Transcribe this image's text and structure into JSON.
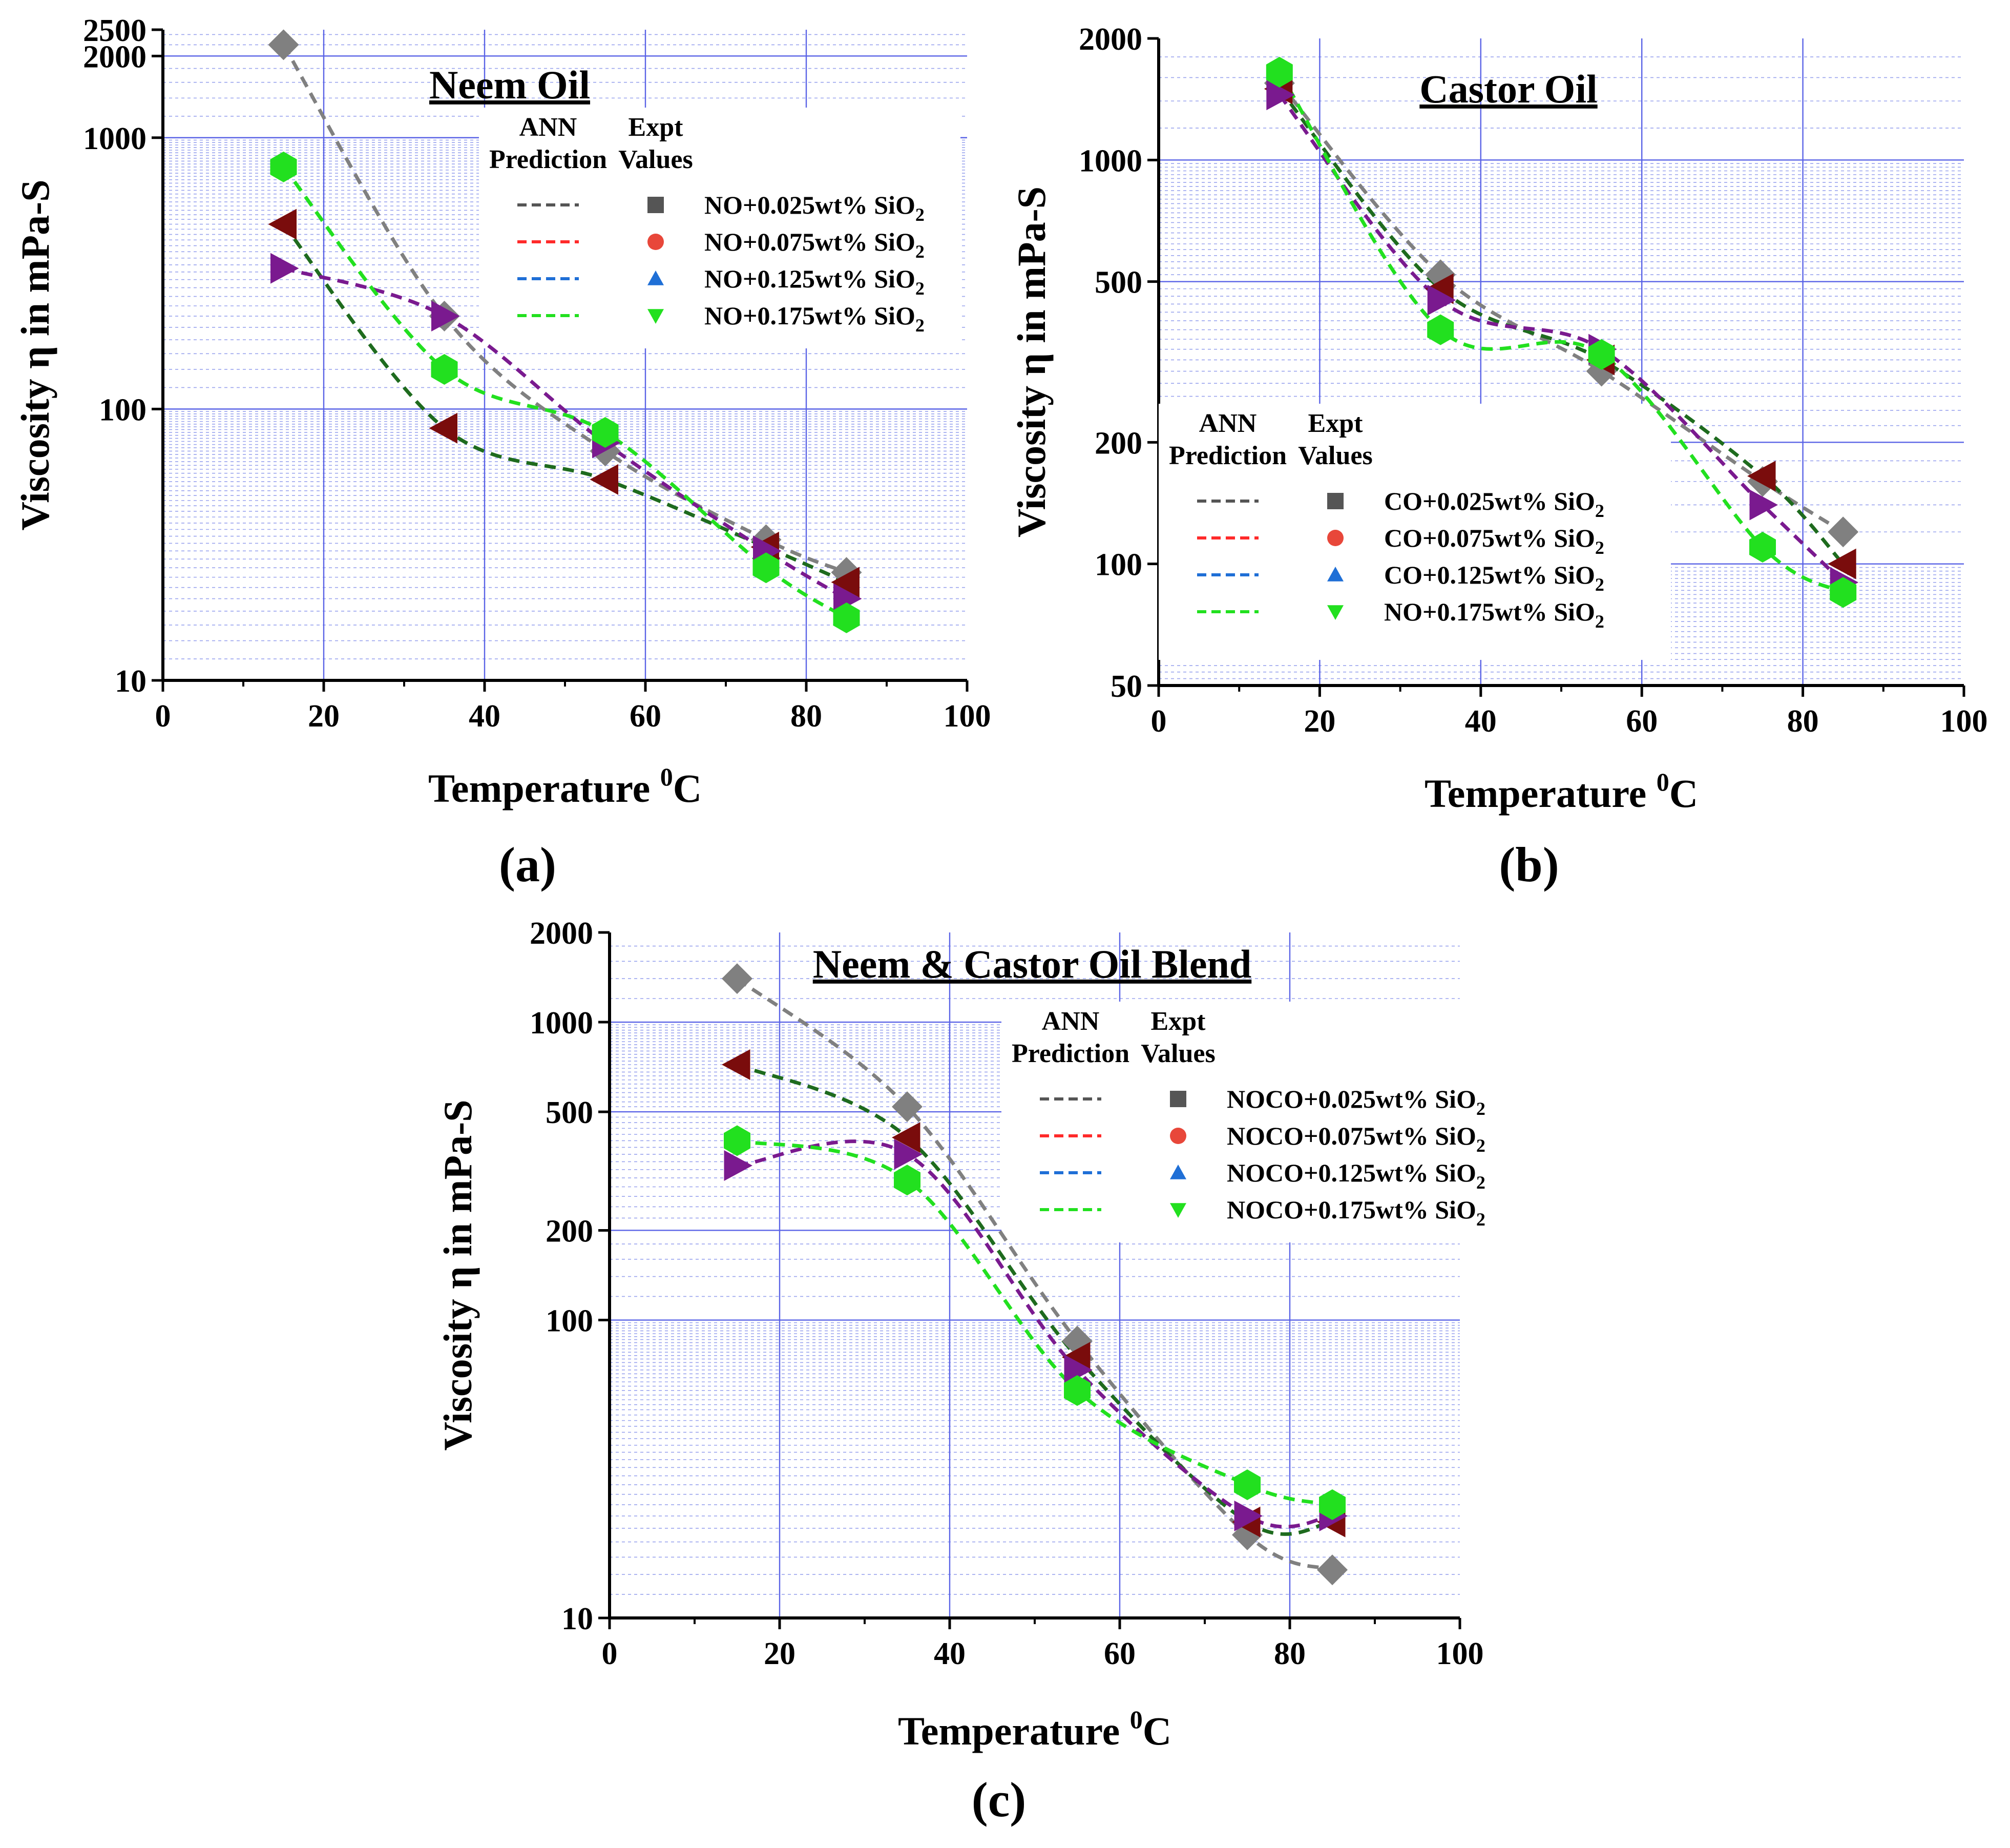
{
  "chart_data": [
    {
      "id": "a",
      "type": "line",
      "yscale": "log",
      "title": "Neem Oil",
      "panel_label": "(a)",
      "xlabel": "Temperature",
      "xlabel_sup": "0",
      "xlabel_unit": "C",
      "ylabel": "Viscosity η in mPa-S",
      "xlim": [
        0,
        100
      ],
      "ylim": [
        10,
        2500
      ],
      "x_ticks": [
        0,
        20,
        40,
        60,
        80,
        100
      ],
      "y_ticks": [
        10,
        100,
        1000,
        2000,
        2500
      ],
      "legend_headers": {
        "left_line1": "ANN",
        "left_line2": "Prediction",
        "right_line1": "Expt",
        "right_line2": "Values"
      },
      "legend": [
        {
          "label": "NO+0.025wt% SiO",
          "sub": "2",
          "line_color": "#555555",
          "marker": "square",
          "marker_color": "#555555"
        },
        {
          "label": "NO+0.075wt% SiO",
          "sub": "2",
          "line_color": "#ff2a2a",
          "marker": "circle",
          "marker_color": "#e8473a"
        },
        {
          "label": "NO+0.125wt% SiO",
          "sub": "2",
          "line_color": "#1f6fd6",
          "marker": "triangle-up",
          "marker_color": "#1f6fd6"
        },
        {
          "label": "NO+0.175wt% SiO",
          "sub": "2",
          "line_color": "#22e01f",
          "marker": "triangle-down",
          "marker_color": "#22e01f"
        }
      ],
      "x": [
        15,
        35,
        55,
        75,
        85
      ],
      "series": [
        {
          "name": "NO+0.025wt% SiO2",
          "marker": "diamond",
          "marker_color": "#808080",
          "line_color": "#808080",
          "values": [
            2200,
            220,
            70,
            33,
            25
          ]
        },
        {
          "name": "NO+0.075wt% SiO2",
          "marker": "triangle-left",
          "marker_color": "#7a0c0c",
          "line_color": "#1e6b1e",
          "values": [
            480,
            85,
            55,
            31,
            23
          ]
        },
        {
          "name": "NO+0.125wt% SiO2",
          "marker": "triangle-right",
          "marker_color": "#7a1a8f",
          "line_color": "#7a1a8f",
          "values": [
            330,
            220,
            75,
            30,
            20
          ]
        },
        {
          "name": "NO+0.175wt% SiO2",
          "marker": "hexagon",
          "marker_color": "#22e01f",
          "line_color": "#22e01f",
          "values": [
            780,
            140,
            82,
            26,
            17
          ]
        }
      ]
    },
    {
      "id": "b",
      "type": "line",
      "yscale": "log",
      "title": "Castor Oil",
      "panel_label": "(b)",
      "xlabel": "Temperature",
      "xlabel_sup": "0",
      "xlabel_unit": "C",
      "ylabel": "Viscosity η in mPa-S",
      "xlim": [
        0,
        100
      ],
      "ylim": [
        50,
        2000
      ],
      "x_ticks": [
        0,
        20,
        40,
        60,
        80,
        100
      ],
      "y_ticks": [
        50,
        100,
        200,
        500,
        1000,
        2000
      ],
      "legend_headers": {
        "left_line1": "ANN",
        "left_line2": "Prediction",
        "right_line1": "Expt",
        "right_line2": "Values"
      },
      "legend": [
        {
          "label": "CO+0.025wt% SiO",
          "sub": "2",
          "line_color": "#555555",
          "marker": "square",
          "marker_color": "#555555"
        },
        {
          "label": "CO+0.075wt% SiO",
          "sub": "2",
          "line_color": "#ff2a2a",
          "marker": "circle",
          "marker_color": "#e8473a"
        },
        {
          "label": "CO+0.125wt% SiO",
          "sub": "2",
          "line_color": "#1f6fd6",
          "marker": "triangle-up",
          "marker_color": "#1f6fd6"
        },
        {
          "label": "NO+0.175wt% SiO",
          "sub": "2",
          "line_color": "#22e01f",
          "marker": "triangle-down",
          "marker_color": "#22e01f"
        }
      ],
      "x": [
        15,
        35,
        55,
        75,
        85
      ],
      "series": [
        {
          "name": "CO+0.025wt% SiO2",
          "marker": "diamond",
          "marker_color": "#808080",
          "line_color": "#808080",
          "values": [
            1550,
            520,
            300,
            160,
            120
          ]
        },
        {
          "name": "CO+0.075wt% SiO2",
          "marker": "triangle-left",
          "marker_color": "#7a0c0c",
          "line_color": "#1e6b1e",
          "values": [
            1500,
            480,
            320,
            165,
            100
          ]
        },
        {
          "name": "CO+0.125wt% SiO2",
          "marker": "triangle-right",
          "marker_color": "#7a1a8f",
          "line_color": "#7a1a8f",
          "values": [
            1450,
            450,
            340,
            140,
            90
          ]
        },
        {
          "name": "NO+0.175wt% SiO2",
          "marker": "hexagon",
          "marker_color": "#22e01f",
          "line_color": "#22e01f",
          "values": [
            1650,
            380,
            330,
            110,
            85
          ]
        }
      ]
    },
    {
      "id": "c",
      "type": "line",
      "yscale": "log",
      "title": "Neem & Castor Oil Blend",
      "panel_label": "(c)",
      "xlabel": "Temperature",
      "xlabel_sup": "0",
      "xlabel_unit": "C",
      "ylabel": "Viscosity η in mPa-S",
      "xlim": [
        0,
        100
      ],
      "ylim": [
        10,
        2000
      ],
      "x_ticks": [
        0,
        20,
        40,
        60,
        80,
        100
      ],
      "y_ticks": [
        10,
        100,
        200,
        500,
        1000,
        2000
      ],
      "legend_headers": {
        "left_line1": "ANN",
        "left_line2": "Prediction",
        "right_line1": "Expt",
        "right_line2": "Values"
      },
      "legend": [
        {
          "label": "NOCO+0.025wt% SiO",
          "sub": "2",
          "line_color": "#555555",
          "marker": "square",
          "marker_color": "#555555"
        },
        {
          "label": "NOCO+0.075wt% SiO",
          "sub": "2",
          "line_color": "#ff2a2a",
          "marker": "circle",
          "marker_color": "#e8473a"
        },
        {
          "label": "NOCO+0.125wt% SiO",
          "sub": "2",
          "line_color": "#1f6fd6",
          "marker": "triangle-up",
          "marker_color": "#1f6fd6"
        },
        {
          "label": "NOCO+0.175wt% SiO",
          "sub": "2",
          "line_color": "#22e01f",
          "marker": "triangle-down",
          "marker_color": "#22e01f"
        }
      ],
      "x": [
        15,
        35,
        55,
        75,
        85
      ],
      "series": [
        {
          "name": "NOCO+0.025wt% SiO2",
          "marker": "diamond",
          "marker_color": "#808080",
          "line_color": "#808080",
          "values": [
            1400,
            520,
            85,
            19,
            14.5
          ]
        },
        {
          "name": "NOCO+0.075wt% SiO2",
          "marker": "triangle-left",
          "marker_color": "#7a0c0c",
          "line_color": "#1e6b1e",
          "values": [
            720,
            410,
            75,
            21,
            21
          ]
        },
        {
          "name": "NOCO+0.125wt% SiO2",
          "marker": "triangle-right",
          "marker_color": "#7a1a8f",
          "line_color": "#7a1a8f",
          "values": [
            330,
            360,
            68,
            22,
            22
          ]
        },
        {
          "name": "NOCO+0.175wt% SiO2",
          "marker": "hexagon",
          "marker_color": "#22e01f",
          "line_color": "#22e01f",
          "values": [
            400,
            295,
            58,
            28,
            24
          ]
        }
      ]
    }
  ]
}
